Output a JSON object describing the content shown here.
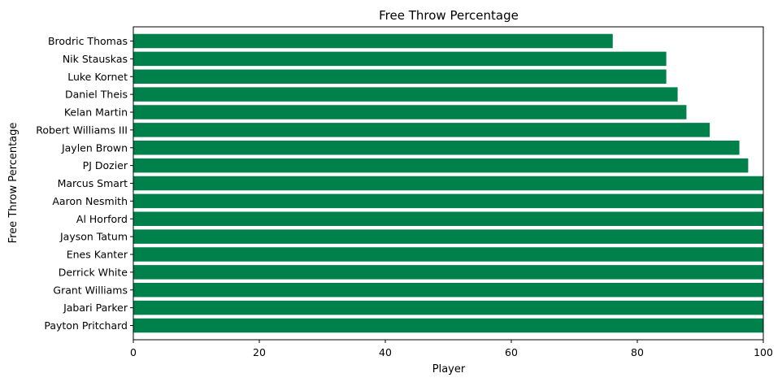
{
  "chart_data": {
    "type": "bar",
    "orientation": "horizontal",
    "title": "Free Throw Percentage",
    "xlabel": "Player",
    "ylabel": "Free Throw Percentage",
    "xlim": [
      0,
      100
    ],
    "xticks": [
      0,
      20,
      40,
      60,
      80,
      100
    ],
    "grid": false,
    "bar_color": "#00804a",
    "categories": [
      "Brodric Thomas",
      "Nik Stauskas",
      "Luke Kornet",
      "Daniel Theis",
      "Kelan Martin",
      "Robert Williams III",
      "Jaylen Brown",
      "PJ Dozier",
      "Marcus Smart",
      "Aaron Nesmith",
      "Al Horford",
      "Jayson Tatum",
      "Enes Kanter",
      "Derrick White",
      "Grant Williams",
      "Jabari Parker",
      "Payton Pritchard"
    ],
    "values": [
      76.1,
      84.6,
      84.6,
      86.4,
      87.8,
      91.5,
      96.2,
      97.6,
      100,
      100,
      100,
      100,
      100,
      100,
      100,
      100,
      100
    ]
  }
}
